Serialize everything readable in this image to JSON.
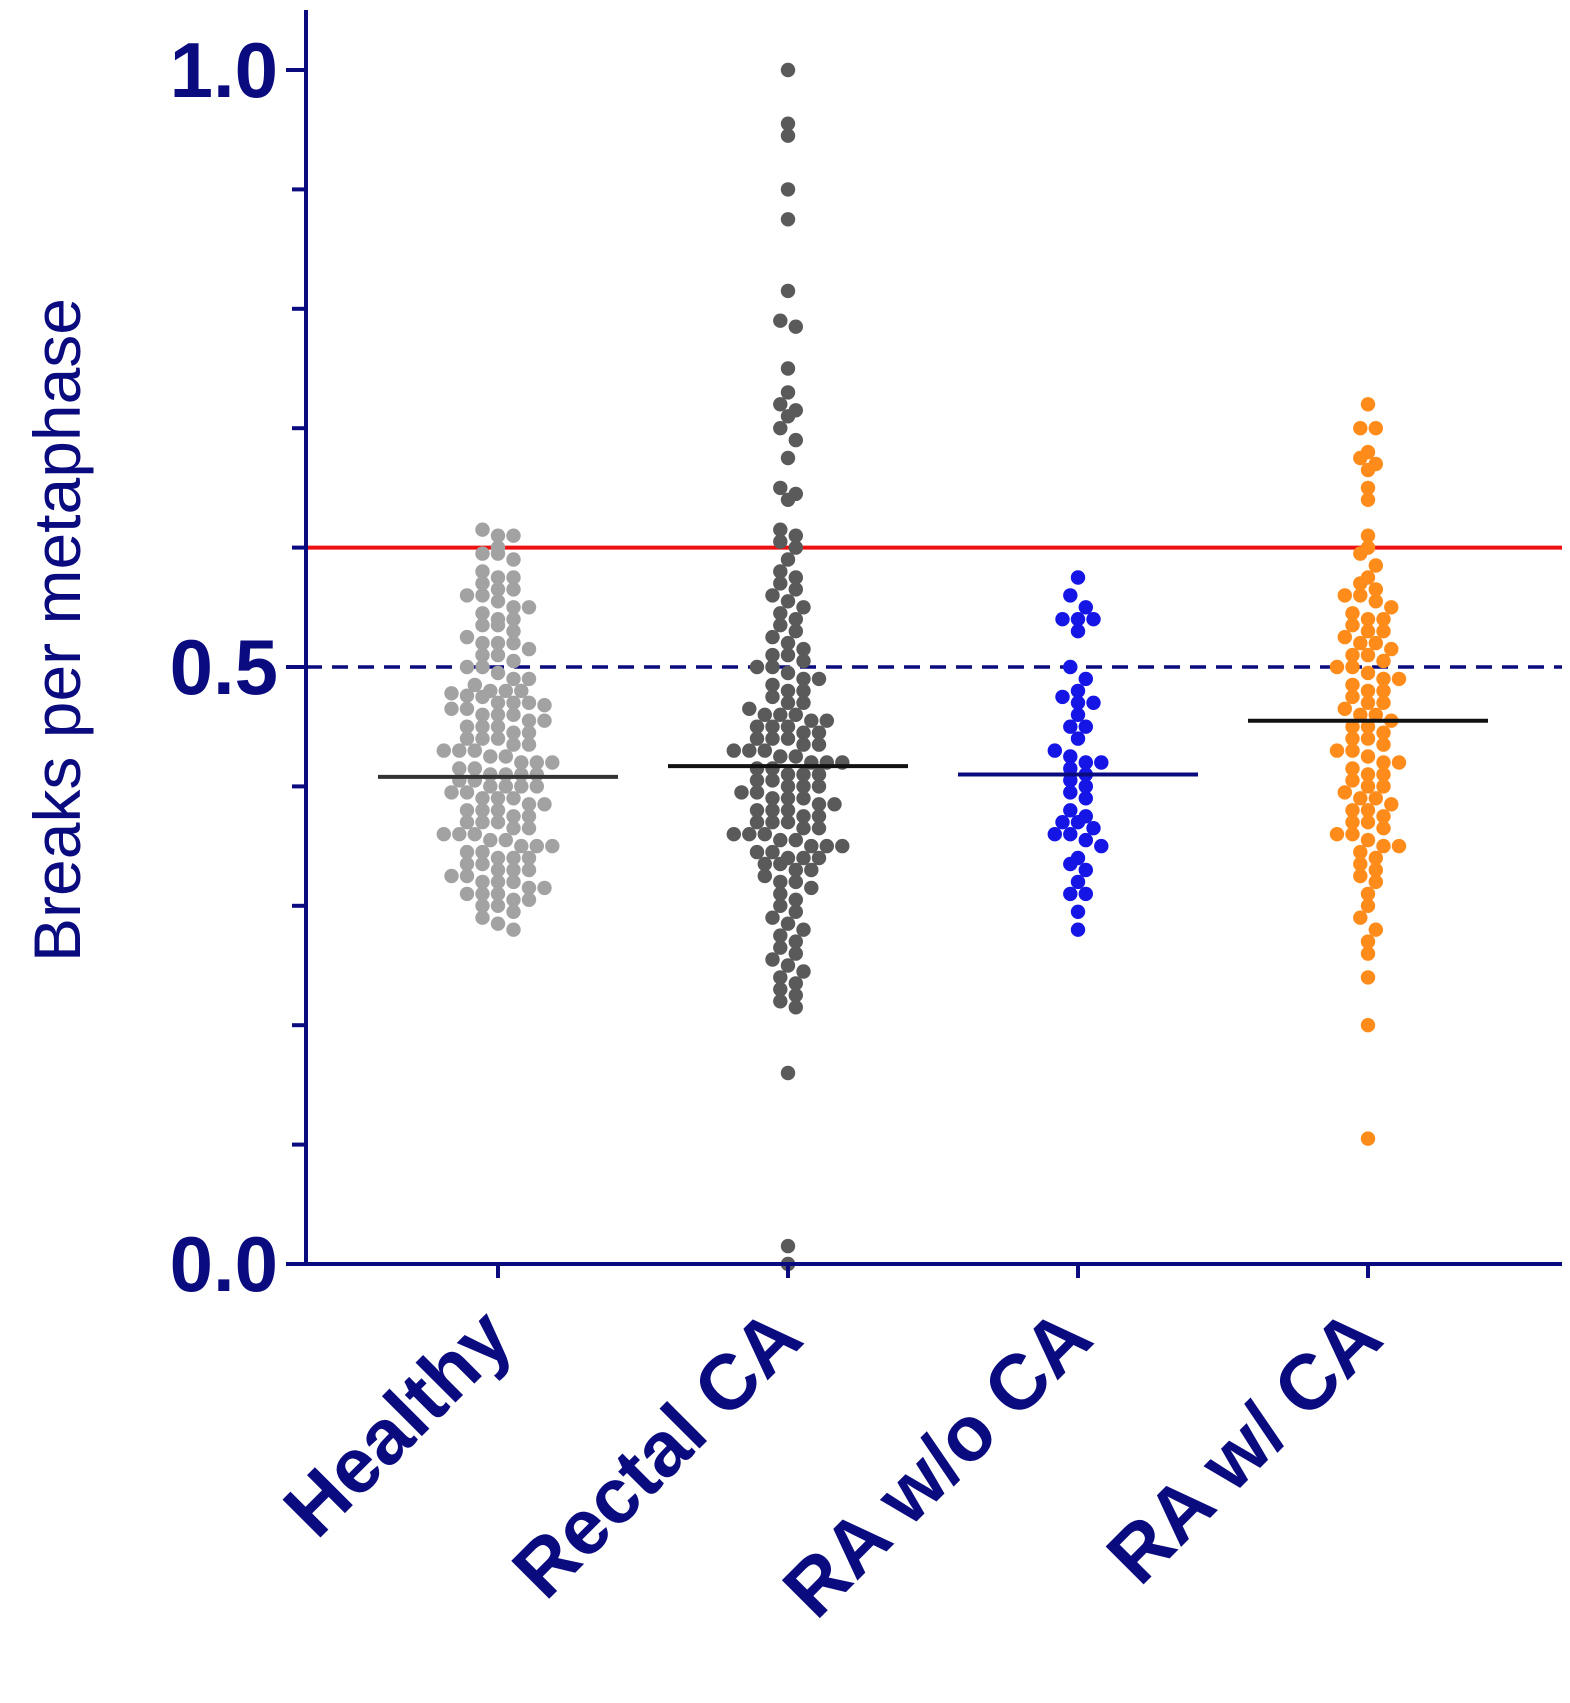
{
  "chart_data": {
    "type": "scatter",
    "subtype": "dot-plot (beeswarm)",
    "ylabel": "Breaks per metaphase",
    "xlabel": "",
    "ylim": [
      0.0,
      1.05
    ],
    "yticks": [
      {
        "value": 0.0,
        "label": "0.0"
      },
      {
        "value": 0.5,
        "label": "0.5"
      },
      {
        "value": 1.0,
        "label": "1.0"
      }
    ],
    "categories": [
      "Healthy",
      "Rectal CA",
      "RA w/o CA",
      "RA w/ CA"
    ],
    "colors": {
      "axis": "#0b0b80",
      "text": "#0b0b80",
      "threshold_line": "#ee1111",
      "reference_line": "#0b0b80"
    },
    "reference_lines": [
      {
        "value": 0.6,
        "style": "solid"
      },
      {
        "value": 0.5,
        "style": "dashed"
      }
    ],
    "series": [
      {
        "category": "Healthy",
        "color": "#a2a2a2",
        "median": 0.408,
        "median_color": "#333333",
        "values": [
          0.615,
          0.61,
          0.61,
          0.6,
          0.595,
          0.595,
          0.59,
          0.58,
          0.575,
          0.575,
          0.57,
          0.565,
          0.565,
          0.56,
          0.56,
          0.555,
          0.55,
          0.55,
          0.545,
          0.54,
          0.54,
          0.535,
          0.535,
          0.53,
          0.525,
          0.52,
          0.52,
          0.52,
          0.515,
          0.51,
          0.51,
          0.505,
          0.5,
          0.5,
          0.495,
          0.49,
          0.49,
          0.485,
          0.48,
          0.48,
          0.48,
          0.478,
          0.476,
          0.475,
          0.47,
          0.47,
          0.47,
          0.468,
          0.465,
          0.465,
          0.46,
          0.46,
          0.46,
          0.455,
          0.455,
          0.45,
          0.45,
          0.45,
          0.445,
          0.445,
          0.44,
          0.44,
          0.44,
          0.435,
          0.435,
          0.43,
          0.43,
          0.43,
          0.425,
          0.425,
          0.42,
          0.42,
          0.42,
          0.415,
          0.415,
          0.41,
          0.41,
          0.41,
          0.41,
          0.405,
          0.405,
          0.4,
          0.4,
          0.4,
          0.4,
          0.395,
          0.395,
          0.39,
          0.39,
          0.39,
          0.385,
          0.385,
          0.38,
          0.38,
          0.38,
          0.375,
          0.375,
          0.37,
          0.37,
          0.37,
          0.365,
          0.365,
          0.36,
          0.36,
          0.36,
          0.355,
          0.355,
          0.35,
          0.35,
          0.35,
          0.345,
          0.345,
          0.34,
          0.34,
          0.34,
          0.335,
          0.335,
          0.33,
          0.33,
          0.33,
          0.325,
          0.325,
          0.32,
          0.32,
          0.32,
          0.315,
          0.315,
          0.31,
          0.31,
          0.31,
          0.305,
          0.305,
          0.3,
          0.3,
          0.295,
          0.29,
          0.285,
          0.28
        ]
      },
      {
        "category": "Rectal CA",
        "color": "#5a5a5a",
        "median": 0.417,
        "median_color": "#111111",
        "values": [
          1.0,
          0.955,
          0.945,
          0.9,
          0.875,
          0.815,
          0.79,
          0.785,
          0.75,
          0.73,
          0.72,
          0.715,
          0.71,
          0.7,
          0.69,
          0.675,
          0.65,
          0.645,
          0.64,
          0.615,
          0.61,
          0.605,
          0.6,
          0.59,
          0.58,
          0.575,
          0.57,
          0.565,
          0.56,
          0.555,
          0.55,
          0.545,
          0.54,
          0.535,
          0.53,
          0.525,
          0.52,
          0.515,
          0.51,
          0.51,
          0.505,
          0.5,
          0.5,
          0.495,
          0.49,
          0.49,
          0.485,
          0.48,
          0.48,
          0.475,
          0.47,
          0.47,
          0.465,
          0.46,
          0.46,
          0.46,
          0.455,
          0.455,
          0.45,
          0.45,
          0.45,
          0.445,
          0.445,
          0.44,
          0.44,
          0.44,
          0.435,
          0.435,
          0.43,
          0.43,
          0.43,
          0.425,
          0.425,
          0.42,
          0.42,
          0.42,
          0.415,
          0.415,
          0.41,
          0.41,
          0.41,
          0.405,
          0.405,
          0.4,
          0.4,
          0.4,
          0.395,
          0.395,
          0.39,
          0.39,
          0.39,
          0.385,
          0.385,
          0.38,
          0.38,
          0.38,
          0.375,
          0.375,
          0.37,
          0.37,
          0.37,
          0.365,
          0.365,
          0.36,
          0.36,
          0.36,
          0.355,
          0.355,
          0.35,
          0.35,
          0.35,
          0.345,
          0.345,
          0.34,
          0.34,
          0.34,
          0.335,
          0.335,
          0.33,
          0.33,
          0.325,
          0.32,
          0.32,
          0.315,
          0.31,
          0.305,
          0.3,
          0.295,
          0.29,
          0.285,
          0.28,
          0.275,
          0.27,
          0.265,
          0.26,
          0.255,
          0.25,
          0.245,
          0.24,
          0.235,
          0.23,
          0.225,
          0.22,
          0.215,
          0.16,
          0.015,
          0.0
        ]
      },
      {
        "category": "RA w/o CA",
        "color": "#1515e6",
        "median": 0.41,
        "median_color": "#0b0b80",
        "values": [
          0.575,
          0.56,
          0.55,
          0.54,
          0.54,
          0.54,
          0.53,
          0.5,
          0.49,
          0.48,
          0.475,
          0.47,
          0.47,
          0.46,
          0.45,
          0.45,
          0.44,
          0.43,
          0.425,
          0.42,
          0.42,
          0.415,
          0.41,
          0.405,
          0.4,
          0.395,
          0.39,
          0.38,
          0.375,
          0.37,
          0.37,
          0.365,
          0.36,
          0.36,
          0.355,
          0.35,
          0.34,
          0.335,
          0.33,
          0.32,
          0.31,
          0.31,
          0.295,
          0.28
        ]
      },
      {
        "category": "RA w/ CA",
        "color": "#ff8c1a",
        "median": 0.455,
        "median_color": "#111111",
        "values": [
          0.72,
          0.7,
          0.7,
          0.68,
          0.675,
          0.67,
          0.665,
          0.65,
          0.64,
          0.61,
          0.6,
          0.595,
          0.585,
          0.575,
          0.57,
          0.565,
          0.56,
          0.56,
          0.555,
          0.55,
          0.545,
          0.54,
          0.54,
          0.535,
          0.53,
          0.53,
          0.525,
          0.52,
          0.52,
          0.515,
          0.51,
          0.51,
          0.505,
          0.5,
          0.5,
          0.495,
          0.49,
          0.49,
          0.485,
          0.48,
          0.48,
          0.475,
          0.47,
          0.47,
          0.465,
          0.46,
          0.46,
          0.455,
          0.45,
          0.45,
          0.445,
          0.44,
          0.44,
          0.435,
          0.43,
          0.43,
          0.425,
          0.42,
          0.42,
          0.415,
          0.41,
          0.41,
          0.405,
          0.4,
          0.4,
          0.395,
          0.39,
          0.39,
          0.385,
          0.38,
          0.38,
          0.375,
          0.37,
          0.37,
          0.365,
          0.36,
          0.36,
          0.355,
          0.35,
          0.35,
          0.345,
          0.34,
          0.335,
          0.33,
          0.325,
          0.32,
          0.31,
          0.3,
          0.29,
          0.28,
          0.27,
          0.26,
          0.24,
          0.2,
          0.105
        ]
      }
    ]
  }
}
